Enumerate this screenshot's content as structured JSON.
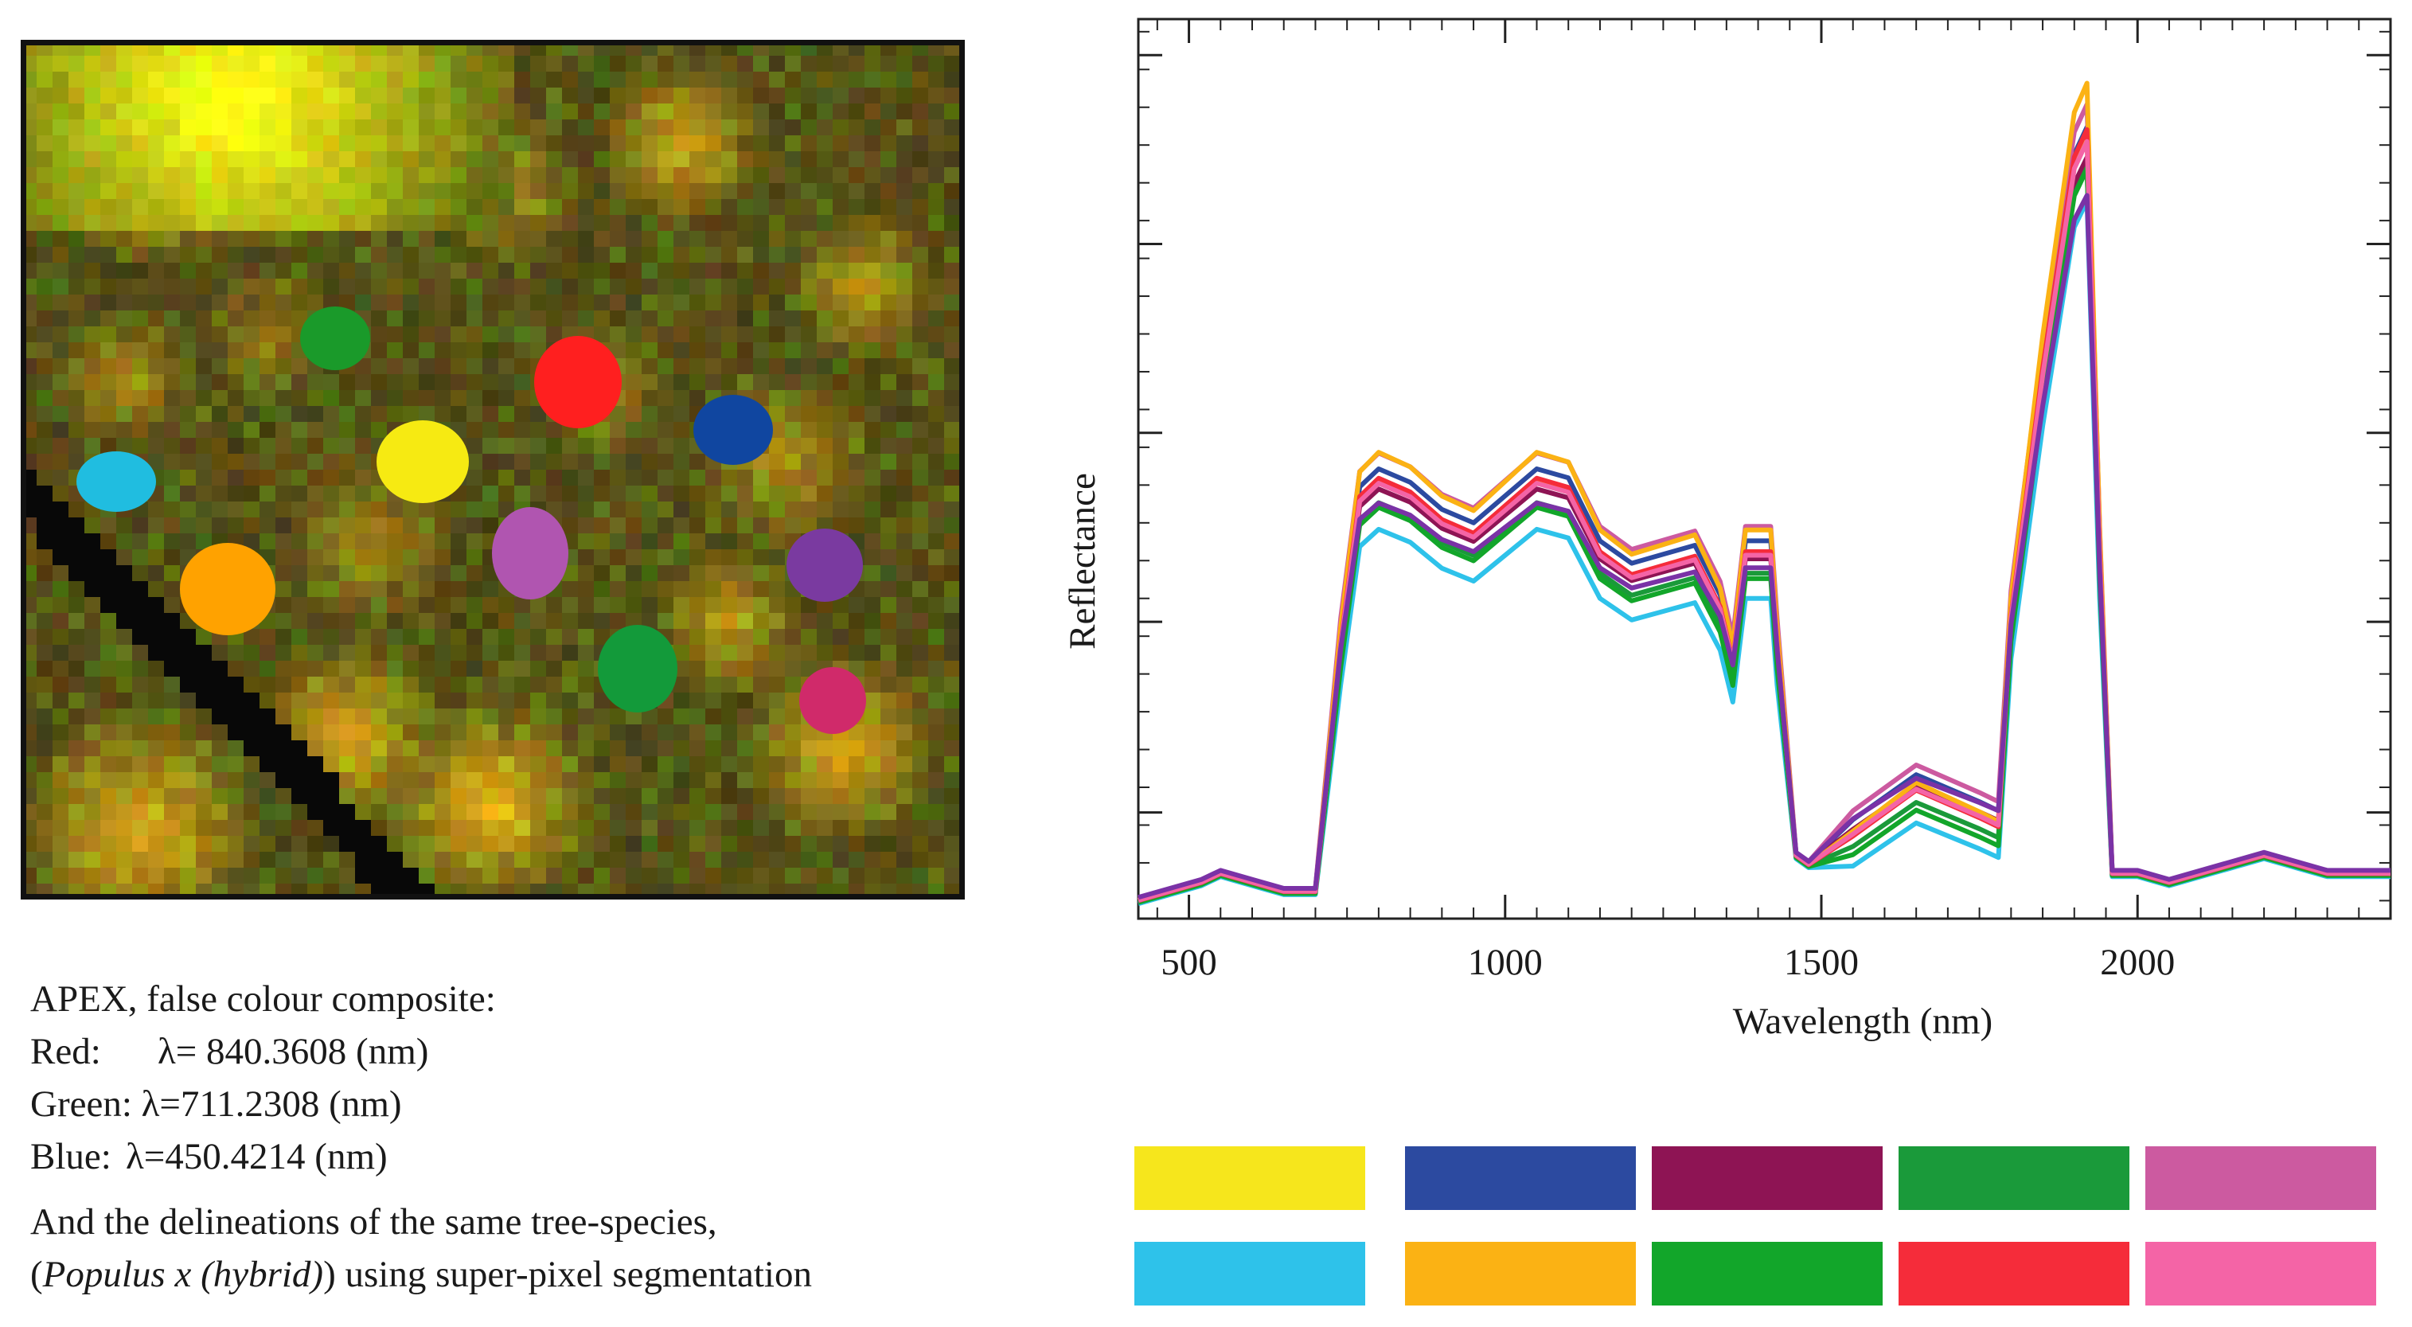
{
  "caption": {
    "line1": "APEX, false colour composite:",
    "red_label": "Red:",
    "red_value": "λ= 840.3608 (nm)",
    "green_label": "Green:",
    "green_value": "λ=711.2308 (nm)",
    "blue_label": "Blue:",
    "blue_value": "λ=450.4214 (nm)",
    "line5": "And the delineations of the same tree-species,",
    "line6_open": "(",
    "line6_species": "Populus x (hybrid)",
    "line6_rest": ") using super-pixel segmentation"
  },
  "image": {
    "segments": [
      {
        "name": "green",
        "color": "#1a9a2a"
      },
      {
        "name": "red",
        "color": "#ff1f1f"
      },
      {
        "name": "blue",
        "color": "#1046a0"
      },
      {
        "name": "yellow",
        "color": "#f6ea12"
      },
      {
        "name": "cyan",
        "color": "#20bde0"
      },
      {
        "name": "magenta",
        "color": "#b055b0"
      },
      {
        "name": "orange",
        "color": "#ffa200"
      },
      {
        "name": "purple",
        "color": "#7a3aa0"
      },
      {
        "name": "dark-green",
        "color": "#139a3a"
      },
      {
        "name": "crimson",
        "color": "#d02a6a"
      }
    ]
  },
  "chart_data": {
    "type": "line",
    "xlabel": "Wavelength (nm)",
    "ylabel": "Reflectance",
    "xlim": [
      420,
      2400
    ],
    "ylim": [
      0,
      1.0
    ],
    "x_ticks": [
      500,
      1000,
      1500,
      2000
    ],
    "x_tick_labels": [
      "500",
      "1000",
      "1500",
      "2000"
    ],
    "y_tick_labels_shown": false,
    "base_profile": {
      "x": [
        420,
        470,
        520,
        550,
        600,
        650,
        700,
        740,
        770,
        800,
        850,
        900,
        950,
        1000,
        1050,
        1100,
        1150,
        1200,
        1250,
        1300,
        1340,
        1360,
        1380,
        1420,
        1430,
        1460,
        1480,
        1550,
        1650,
        1750,
        1780,
        1800,
        1850,
        1900,
        1920,
        1940,
        1960,
        2000,
        2050,
        2100,
        2200,
        2300,
        2400
      ],
      "y": [
        0.02,
        0.03,
        0.04,
        0.05,
        0.04,
        0.03,
        0.03,
        0.3,
        0.46,
        0.48,
        0.465,
        0.435,
        0.42,
        0.45,
        0.48,
        0.47,
        0.4,
        0.375,
        0.385,
        0.395,
        0.34,
        0.28,
        0.4,
        0.4,
        0.3,
        0.07,
        0.06,
        0.09,
        0.14,
        0.11,
        0.1,
        0.33,
        0.6,
        0.83,
        0.86,
        0.4,
        0.05,
        0.05,
        0.04,
        0.05,
        0.07,
        0.05,
        0.05
      ]
    },
    "series": [
      {
        "name": "yellow",
        "color": "#f6e61c",
        "offset": 0.006,
        "scale": 1.0
      },
      {
        "name": "blue",
        "color": "#2c4aa0",
        "offset": 0.02,
        "scale": 1.0
      },
      {
        "name": "maroon",
        "color": "#8e1454",
        "offset": 0.012,
        "scale": 0.97
      },
      {
        "name": "green",
        "color": "#1a9a3a",
        "offset": -0.008,
        "scale": 0.98
      },
      {
        "name": "pink-purple",
        "color": "#cc5aa0",
        "offset": 0.028,
        "scale": 1.02
      },
      {
        "name": "cyan",
        "color": "#2ec2ea",
        "offset": -0.028,
        "scale": 0.96
      },
      {
        "name": "orange",
        "color": "#fbb214",
        "offset": 0.0,
        "scale": 1.08
      },
      {
        "name": "bright-green",
        "color": "#12a62a",
        "offset": -0.018,
        "scale": 0.99
      },
      {
        "name": "red",
        "color": "#f52c3a",
        "offset": 0.0,
        "scale": 1.02
      },
      {
        "name": "hot-pink",
        "color": "#f464a6",
        "offset": 0.004,
        "scale": 1.0
      },
      {
        "name": "purple",
        "color": "#7a32a6",
        "offset": 0.03,
        "scale": 0.9
      }
    ]
  },
  "legend": {
    "swatches": [
      {
        "color": "#f6e61c"
      },
      {
        "color": "#2c4aa0"
      },
      {
        "color": "#8e1454"
      },
      {
        "color": "#1a9a3a"
      },
      {
        "color": "#cc5aa0"
      },
      {
        "color": "#2ec2ea"
      },
      {
        "color": "#fbb214"
      },
      {
        "color": "#12a62a"
      },
      {
        "color": "#f52c3a"
      },
      {
        "color": "#f464a6"
      }
    ]
  }
}
